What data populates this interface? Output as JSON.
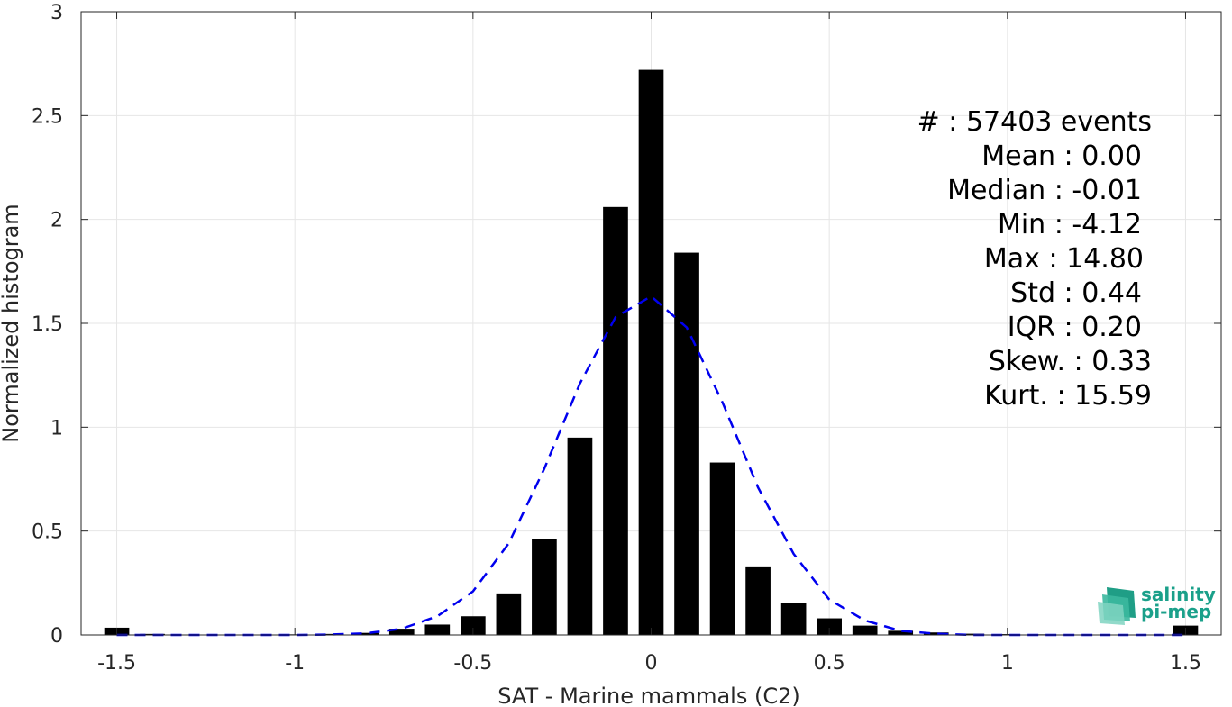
{
  "chart_data": {
    "type": "bar",
    "xlabel": "SAT - Marine mammals (C2)",
    "ylabel": "Normalized histogram",
    "xlim": [
      -1.6,
      1.6
    ],
    "ylim": [
      0,
      3
    ],
    "grid": true,
    "x_ticks": [
      "-1.5",
      "-1",
      "-0.5",
      "0",
      "0.5",
      "1",
      "1.5"
    ],
    "y_ticks": [
      "0",
      "0.5",
      "1",
      "1.5",
      "2",
      "2.5",
      "3"
    ],
    "bar_width": 0.07,
    "bar_color": "#000000",
    "bars": {
      "x": [
        -1.5,
        -1.4,
        -1.3,
        -1.2,
        -1.1,
        -1.0,
        -0.9,
        -0.8,
        -0.7,
        -0.6,
        -0.5,
        -0.4,
        -0.3,
        -0.2,
        -0.1,
        0.0,
        0.1,
        0.2,
        0.3,
        0.4,
        0.5,
        0.6,
        0.7,
        0.8,
        0.9,
        1.0,
        1.1,
        1.2,
        1.3,
        1.4,
        1.5
      ],
      "values": [
        0.035,
        0.005,
        0.002,
        0.002,
        0.002,
        0.003,
        0.005,
        0.01,
        0.03,
        0.05,
        0.09,
        0.2,
        0.46,
        0.95,
        2.06,
        2.72,
        1.84,
        0.83,
        0.33,
        0.155,
        0.08,
        0.045,
        0.02,
        0.012,
        0.006,
        0.004,
        0.003,
        0.002,
        0.002,
        0.002,
        0.045
      ]
    },
    "fit_curve": {
      "color": "#0000ee",
      "style": "dashed",
      "x": [
        -1.5,
        -1.4,
        -1.3,
        -1.2,
        -1.1,
        -1.0,
        -0.9,
        -0.8,
        -0.7,
        -0.6,
        -0.5,
        -0.4,
        -0.3,
        -0.2,
        -0.1,
        0.0,
        0.1,
        0.2,
        0.3,
        0.4,
        0.5,
        0.6,
        0.7,
        0.8,
        0.9,
        1.0,
        1.1,
        1.2,
        1.3,
        1.4,
        1.5
      ],
      "y": [
        0.0,
        0.0,
        0.0,
        0.0,
        0.0,
        0.0,
        0.002,
        0.008,
        0.03,
        0.09,
        0.21,
        0.44,
        0.8,
        1.21,
        1.53,
        1.63,
        1.48,
        1.12,
        0.71,
        0.39,
        0.17,
        0.07,
        0.02,
        0.006,
        0.0,
        0.0,
        0.0,
        0.0,
        0.0,
        0.0,
        0.0
      ]
    },
    "annotations": [
      "#  : 57403 events",
      "Mean : 0.00",
      "Median : -0.01",
      "Min : -4.12",
      "Max : 14.80",
      "Std : 0.44",
      "IQR : 0.20",
      "Skew. : 0.33",
      "Kurt. : 15.59"
    ]
  },
  "logo": {
    "line1": "salinity",
    "line2": "pi-mep"
  }
}
